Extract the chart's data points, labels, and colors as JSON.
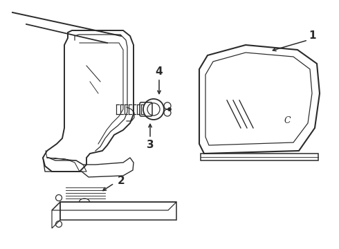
{
  "bg_color": "#ffffff",
  "line_color": "#2a2a2a",
  "lw": 1.1,
  "fig_w": 4.9,
  "fig_h": 3.6,
  "dpi": 100,
  "label1": "1",
  "label2": "2",
  "label3": "3",
  "label4": "4",
  "font_size": 10,
  "font_size_bold": 11
}
